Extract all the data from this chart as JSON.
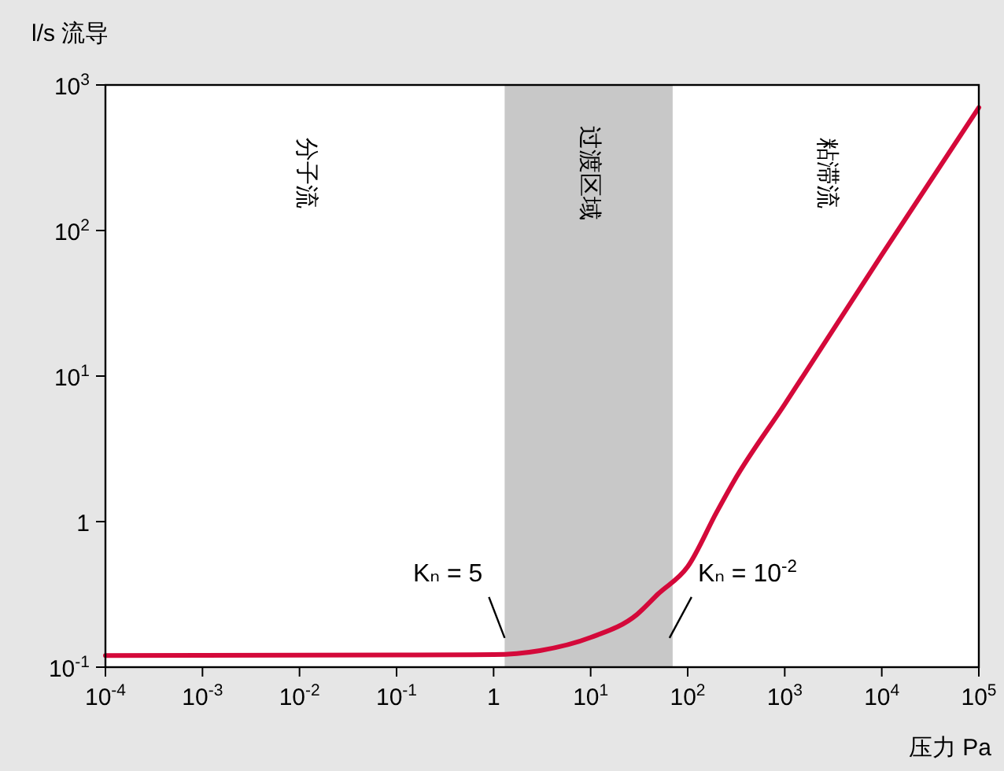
{
  "chart_data": {
    "type": "line",
    "ylabel": "l/s  流导",
    "xlabel": "压力  Pa",
    "log": "xy",
    "xlim": [
      0.0001,
      100000
    ],
    "ylim": [
      0.1,
      1000
    ],
    "xticks": [
      {
        "value": 0.0001,
        "label": "10$^{-4}$"
      },
      {
        "value": 0.001,
        "label": "10$^{-3}$"
      },
      {
        "value": 0.01,
        "label": "10$^{-2}$"
      },
      {
        "value": 0.1,
        "label": "10$^{-1}$"
      },
      1,
      {
        "value": 10,
        "label": "10$^{1}$"
      },
      {
        "value": 100,
        "label": "10$^{2}$"
      },
      {
        "value": 1000,
        "label": "10$^{3}$"
      },
      {
        "value": 10000,
        "label": "10$^{4}$"
      },
      {
        "value": 100000,
        "label": "10$^{5}$"
      }
    ],
    "yticks": [
      {
        "value": 0.1,
        "label": "10$^{-1}$"
      },
      1,
      {
        "value": 10,
        "label": "10$^{1}$"
      },
      {
        "value": 100,
        "label": "10$^{2}$"
      },
      {
        "value": 1000,
        "label": "10$^{3}$"
      }
    ],
    "x": [
      0.0001,
      0.01,
      1,
      3,
      10,
      30,
      50,
      100,
      200,
      300,
      1000,
      10000,
      100000
    ],
    "series": [
      {
        "color": "#d4093a",
        "values": [
          0.12,
          0.121,
          0.122,
          0.13,
          0.16,
          0.23,
          0.32,
          0.49,
          1.17,
          1.9,
          6.4,
          68,
          700
        ]
      }
    ],
    "bands": [
      {
        "axis": "x",
        "from": 1.3,
        "to": 70,
        "label": "过渡区域",
        "color": "#c8c8c8"
      }
    ],
    "annotations": [
      "分子流",
      "粘滞流",
      {
        "text": "Kₙ = 5",
        "x": 1.3,
        "y": 0.13
      },
      {
        "text": "Kₙ = 10$^{-2}$",
        "x": 70,
        "y": 0.13
      }
    ],
    "grid": false,
    "marker": "none",
    "line_style": "solid"
  }
}
